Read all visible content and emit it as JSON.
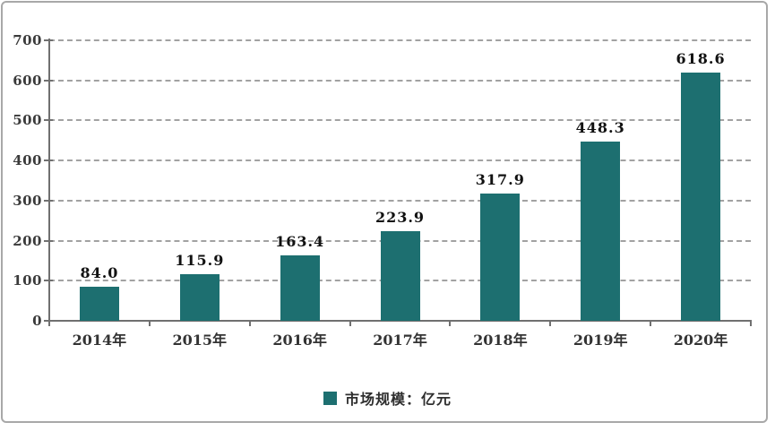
{
  "chart_data": {
    "type": "bar",
    "title": "",
    "xlabel": "",
    "ylabel": "",
    "categories": [
      "2014年",
      "2015年",
      "2016年",
      "2017年",
      "2018年",
      "2019年",
      "2020年"
    ],
    "values": [
      84.0,
      115.9,
      163.4,
      223.9,
      317.9,
      448.3,
      618.6
    ],
    "value_labels": [
      "84.0",
      "115.9",
      "163.4",
      "223.9",
      "317.9",
      "448.3",
      "618.6"
    ],
    "yticks": [
      0,
      100,
      200,
      300,
      400,
      500,
      600,
      700
    ],
    "ylim": [
      0,
      700
    ],
    "grid": "horizontal-dashed",
    "legend_position": "bottom-center",
    "legend": [
      {
        "label": "市场规模：亿元",
        "color": "#1d6f70"
      }
    ],
    "bar_color": "#1d6f70",
    "axis_color": "#707070",
    "gridline_color": "#a2a2a2",
    "frame_border_color": "#a8a8a8"
  }
}
